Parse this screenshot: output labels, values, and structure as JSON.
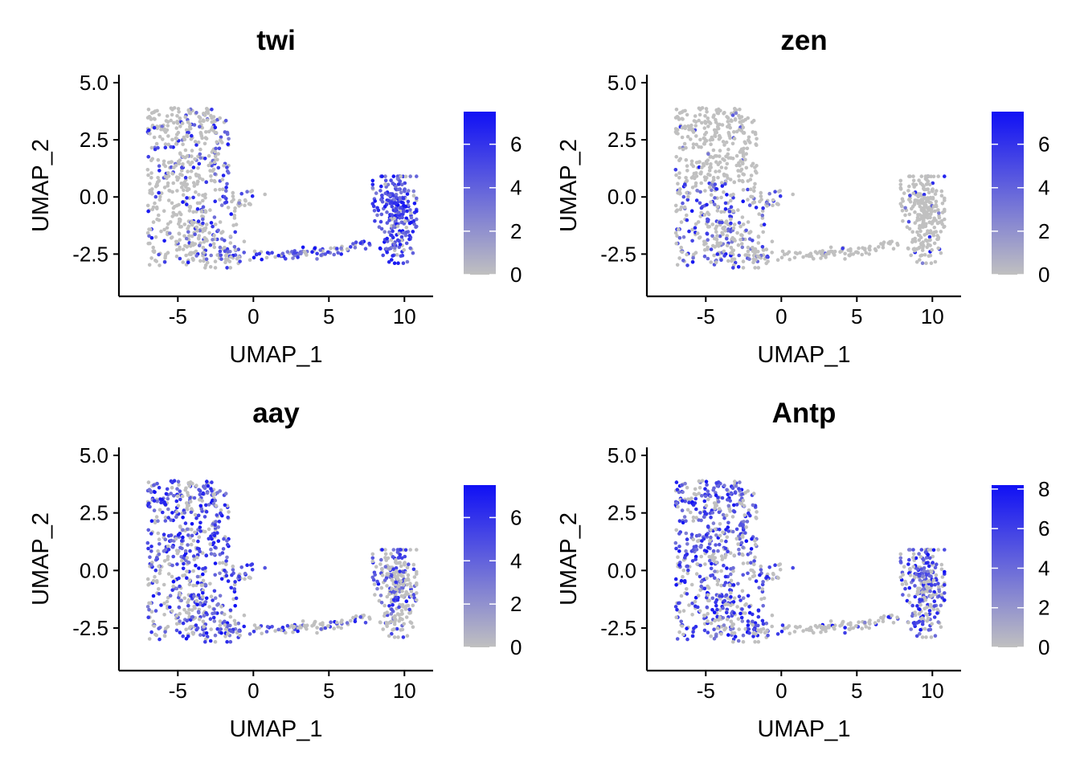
{
  "chart_data": [
    {
      "type": "scatter",
      "title": "twi",
      "xlabel": "UMAP_1",
      "ylabel": "UMAP_2",
      "xlim": [
        -8.9,
        11.9
      ],
      "ylim": [
        -4.35,
        5.35
      ],
      "xticks": [
        -5,
        0,
        5,
        10
      ],
      "xtick_labels": [
        "-5",
        "0",
        "5",
        "10"
      ],
      "yticks": [
        -2.5,
        0.0,
        2.5,
        5.0
      ],
      "ytick_labels": [
        "-2.5",
        "0.0",
        "2.5",
        "5.0"
      ],
      "legend": {
        "position": "right",
        "type": "colorbar",
        "min": 0,
        "max": 7.5,
        "ticks": [
          0,
          2,
          4,
          6
        ],
        "tick_labels": [
          "0",
          "2",
          "4",
          "6"
        ]
      },
      "colors": {
        "low": "#c0c0c0",
        "high": "#1010f5"
      },
      "expression_profile": {
        "lower_left_cluster": 0.15,
        "upper_left_cluster": 0.2,
        "upper_right_arm": 0.55,
        "mid_arm": 0.45,
        "bridge": 0.7,
        "right_cluster": 0.9,
        "right_low_patch": 0.85
      }
    },
    {
      "type": "scatter",
      "title": "zen",
      "xlabel": "UMAP_1",
      "ylabel": "UMAP_2",
      "xlim": [
        -8.9,
        11.9
      ],
      "ylim": [
        -4.35,
        5.35
      ],
      "xticks": [
        -5,
        0,
        5,
        10
      ],
      "xtick_labels": [
        "-5",
        "0",
        "5",
        "10"
      ],
      "yticks": [
        -2.5,
        0.0,
        2.5,
        5.0
      ],
      "ytick_labels": [
        "-2.5",
        "0.0",
        "2.5",
        "5.0"
      ],
      "legend": {
        "position": "right",
        "type": "colorbar",
        "min": 0,
        "max": 7.5,
        "ticks": [
          0,
          2,
          4,
          6
        ],
        "tick_labels": [
          "0",
          "2",
          "4",
          "6"
        ]
      },
      "colors": {
        "low": "#c0c0c0",
        "high": "#1010f5"
      },
      "expression_profile": {
        "lower_left_cluster": 0.45,
        "upper_left_cluster": 0.05,
        "upper_right_arm": 0.03,
        "mid_arm": 0.35,
        "bridge": 0.02,
        "right_cluster": 0.06,
        "right_low_patch": 0.06
      }
    },
    {
      "type": "scatter",
      "title": "aay",
      "xlabel": "UMAP_1",
      "ylabel": "UMAP_2",
      "xlim": [
        -8.9,
        11.9
      ],
      "ylim": [
        -4.35,
        5.35
      ],
      "xticks": [
        -5,
        0,
        5,
        10
      ],
      "xtick_labels": [
        "-5",
        "0",
        "5",
        "10"
      ],
      "yticks": [
        -2.5,
        0.0,
        2.5,
        5.0
      ],
      "ytick_labels": [
        "-2.5",
        "0.0",
        "2.5",
        "5.0"
      ],
      "legend": {
        "position": "right",
        "type": "colorbar",
        "min": 0,
        "max": 7.5,
        "ticks": [
          0,
          2,
          4,
          6
        ],
        "tick_labels": [
          "0",
          "2",
          "4",
          "6"
        ]
      },
      "colors": {
        "low": "#c0c0c0",
        "high": "#1010f5"
      },
      "expression_profile": {
        "lower_left_cluster": 0.45,
        "upper_left_cluster": 0.65,
        "upper_right_arm": 0.6,
        "mid_arm": 0.7,
        "bridge": 0.35,
        "right_cluster": 0.3,
        "right_low_patch": 0.35
      }
    },
    {
      "type": "scatter",
      "title": "Antp",
      "xlabel": "UMAP_1",
      "ylabel": "UMAP_2",
      "xlim": [
        -8.9,
        11.9
      ],
      "ylim": [
        -4.35,
        5.35
      ],
      "xticks": [
        -5,
        0,
        5,
        10
      ],
      "xtick_labels": [
        "-5",
        "0",
        "5",
        "10"
      ],
      "yticks": [
        -2.5,
        0.0,
        2.5,
        5.0
      ],
      "ytick_labels": [
        "-2.5",
        "0.0",
        "2.5",
        "5.0"
      ],
      "legend": {
        "position": "right",
        "type": "colorbar",
        "min": 0,
        "max": 8.2,
        "ticks": [
          0,
          2,
          4,
          6,
          8
        ],
        "tick_labels": [
          "0",
          "2",
          "4",
          "6",
          "8"
        ]
      },
      "colors": {
        "low": "#c0c0c0",
        "high": "#1010f5"
      },
      "expression_profile": {
        "lower_left_cluster": 0.6,
        "upper_left_cluster": 0.7,
        "upper_right_arm": 0.6,
        "mid_arm": 0.4,
        "bridge": 0.1,
        "right_cluster": 0.5,
        "right_low_patch": 0.7
      }
    }
  ]
}
